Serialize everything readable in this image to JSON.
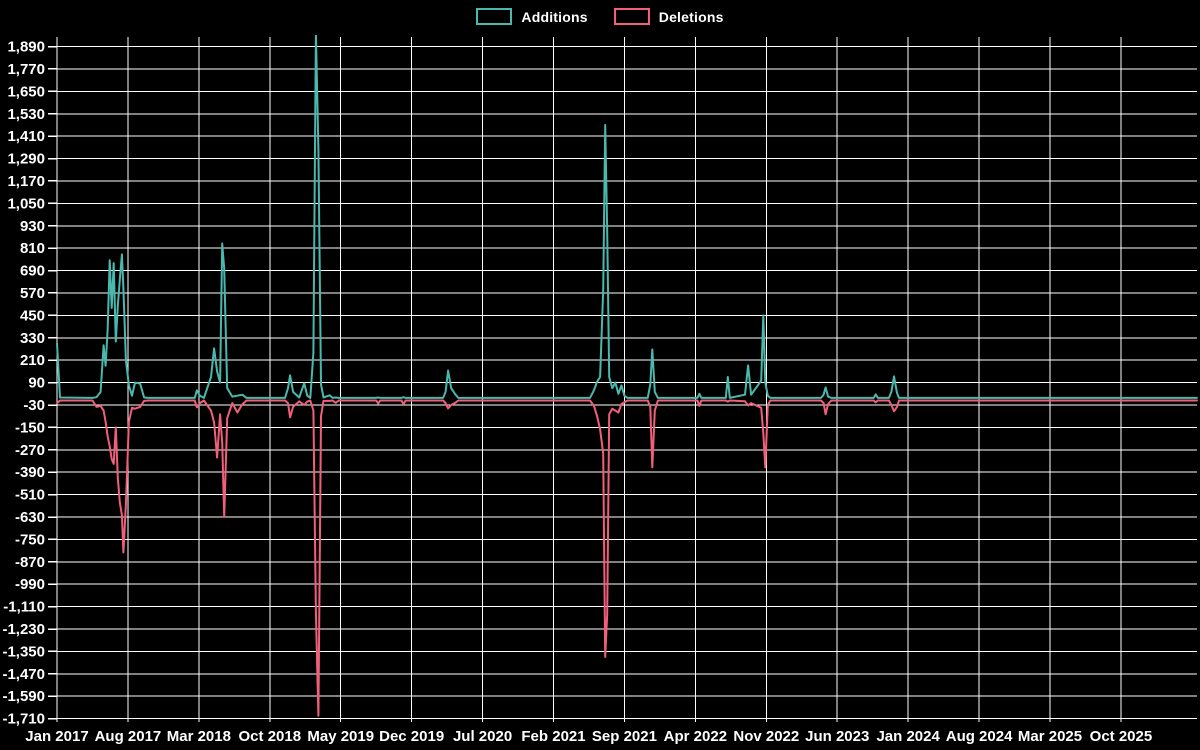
{
  "legend": {
    "items": [
      {
        "id": "additions",
        "label": "Additions",
        "color": "#4bb8ae"
      },
      {
        "id": "deletions",
        "label": "Deletions",
        "color": "#f25f7a"
      }
    ]
  },
  "colors": {
    "background": "#000000",
    "grid": "#ffffff",
    "text": "#ffffff",
    "additions": "#4bb8ae",
    "deletions": "#f25f7a"
  },
  "chart_data": {
    "type": "line",
    "title": "",
    "xlabel": "",
    "ylabel": "",
    "grid": true,
    "legend_position": "top-center",
    "x_unit": "months since Jan 2017",
    "x_range_months": [
      0,
      112.5
    ],
    "y_range": [
      -1710,
      1890
    ],
    "y_tick_step": 120,
    "x_tick_labels": [
      "Jan 2017",
      "Aug 2017",
      "Mar 2018",
      "Oct 2018",
      "May 2019",
      "Dec 2019",
      "Jul 2020",
      "Feb 2021",
      "Sep 2021",
      "Apr 2022",
      "Nov 2022",
      "Jun 2023",
      "Jan 2024",
      "Aug 2024",
      "Mar 2025",
      "Oct 2025"
    ],
    "x_tick_months": [
      0,
      7,
      14,
      21,
      28,
      35,
      42,
      49,
      56,
      63,
      70,
      77,
      84,
      91,
      98,
      105
    ],
    "y_ticks": [
      {
        "value": 1890,
        "label": "1,890"
      },
      {
        "value": 1770,
        "label": "1,770"
      },
      {
        "value": 1650,
        "label": "1,650"
      },
      {
        "value": 1530,
        "label": "1,530"
      },
      {
        "value": 1410,
        "label": "1,410"
      },
      {
        "value": 1290,
        "label": "1,290"
      },
      {
        "value": 1170,
        "label": "1,170"
      },
      {
        "value": 1050,
        "label": "1,050"
      },
      {
        "value": 930,
        "label": "930"
      },
      {
        "value": 810,
        "label": "810"
      },
      {
        "value": 690,
        "label": "690"
      },
      {
        "value": 570,
        "label": "570"
      },
      {
        "value": 450,
        "label": "450"
      },
      {
        "value": 330,
        "label": "330"
      },
      {
        "value": 210,
        "label": "210"
      },
      {
        "value": 90,
        "label": "90"
      },
      {
        "value": -30,
        "label": "-30"
      },
      {
        "value": -150,
        "label": "-150"
      },
      {
        "value": -270,
        "label": "-270"
      },
      {
        "value": -390,
        "label": "-390"
      },
      {
        "value": -510,
        "label": "-510"
      },
      {
        "value": -630,
        "label": "-630"
      },
      {
        "value": -750,
        "label": "-750"
      },
      {
        "value": -870,
        "label": "-870"
      },
      {
        "value": -990,
        "label": "-990"
      },
      {
        "value": -1110,
        "label": "-1,110"
      },
      {
        "value": -1230,
        "label": "-1,230"
      },
      {
        "value": -1350,
        "label": "-1,350"
      },
      {
        "value": -1470,
        "label": "-1,470"
      },
      {
        "value": -1590,
        "label": "-1,590"
      },
      {
        "value": -1710,
        "label": "-1,710"
      }
    ],
    "series": [
      {
        "name": "Additions",
        "color": "#4bb8ae",
        "points": [
          [
            0,
            300
          ],
          [
            0.3,
            10
          ],
          [
            3.5,
            8
          ],
          [
            3.9,
            12
          ],
          [
            4.3,
            40
          ],
          [
            4.6,
            290
          ],
          [
            4.8,
            180
          ],
          [
            5.0,
            380
          ],
          [
            5.2,
            745
          ],
          [
            5.4,
            490
          ],
          [
            5.6,
            730
          ],
          [
            5.8,
            310
          ],
          [
            6.0,
            500
          ],
          [
            6.2,
            640
          ],
          [
            6.4,
            777
          ],
          [
            6.55,
            595
          ],
          [
            6.8,
            210
          ],
          [
            7.1,
            75
          ],
          [
            7.4,
            20
          ],
          [
            7.7,
            90
          ],
          [
            8.2,
            85
          ],
          [
            8.6,
            10
          ],
          [
            9.0,
            8
          ],
          [
            13.6,
            8
          ],
          [
            13.8,
            48
          ],
          [
            14.1,
            20
          ],
          [
            14.5,
            8
          ],
          [
            15.2,
            120
          ],
          [
            15.5,
            273
          ],
          [
            15.8,
            150
          ],
          [
            16.1,
            90
          ],
          [
            16.3,
            835
          ],
          [
            16.5,
            700
          ],
          [
            16.8,
            60
          ],
          [
            17.3,
            15
          ],
          [
            17.8,
            20
          ],
          [
            18.3,
            25
          ],
          [
            18.7,
            8
          ],
          [
            22.5,
            8
          ],
          [
            22.8,
            60
          ],
          [
            23.0,
            129
          ],
          [
            23.3,
            40
          ],
          [
            23.9,
            10
          ],
          [
            24.4,
            86
          ],
          [
            24.7,
            20
          ],
          [
            25.0,
            8
          ],
          [
            25.3,
            250
          ],
          [
            25.55,
            1960
          ],
          [
            25.8,
            1340
          ],
          [
            26.05,
            80
          ],
          [
            26.3,
            10
          ],
          [
            26.9,
            22
          ],
          [
            27.2,
            8
          ],
          [
            27.5,
            10
          ],
          [
            27.8,
            8
          ],
          [
            31.5,
            8
          ],
          [
            31.7,
            10
          ],
          [
            31.9,
            8
          ],
          [
            34.0,
            8
          ],
          [
            34.2,
            12
          ],
          [
            34.4,
            8
          ],
          [
            38.1,
            8
          ],
          [
            38.35,
            40
          ],
          [
            38.6,
            155
          ],
          [
            38.9,
            60
          ],
          [
            39.3,
            28
          ],
          [
            39.6,
            8
          ],
          [
            52.6,
            8
          ],
          [
            53.0,
            50
          ],
          [
            53.3,
            95
          ],
          [
            53.6,
            120
          ],
          [
            53.9,
            585
          ],
          [
            54.1,
            1470
          ],
          [
            54.3,
            900
          ],
          [
            54.5,
            120
          ],
          [
            54.8,
            60
          ],
          [
            55.1,
            90
          ],
          [
            55.4,
            30
          ],
          [
            55.7,
            75
          ],
          [
            56.0,
            20
          ],
          [
            56.3,
            8
          ],
          [
            58.3,
            8
          ],
          [
            58.55,
            80
          ],
          [
            58.75,
            268
          ],
          [
            59.0,
            40
          ],
          [
            59.3,
            8
          ],
          [
            63.2,
            8
          ],
          [
            63.4,
            30
          ],
          [
            63.6,
            8
          ],
          [
            66.0,
            8
          ],
          [
            66.2,
            120
          ],
          [
            66.4,
            8
          ],
          [
            67.9,
            25
          ],
          [
            68.2,
            182
          ],
          [
            68.5,
            25
          ],
          [
            69.5,
            100
          ],
          [
            69.7,
            450
          ],
          [
            69.9,
            90
          ],
          [
            70.15,
            20
          ],
          [
            70.4,
            8
          ],
          [
            75.4,
            8
          ],
          [
            75.65,
            25
          ],
          [
            75.85,
            64
          ],
          [
            76.1,
            15
          ],
          [
            76.4,
            8
          ],
          [
            80.6,
            8
          ],
          [
            80.8,
            27
          ],
          [
            81.0,
            8
          ],
          [
            82.1,
            8
          ],
          [
            82.35,
            40
          ],
          [
            82.6,
            123
          ],
          [
            82.9,
            35
          ],
          [
            83.1,
            8
          ],
          [
            112.5,
            8
          ]
        ]
      },
      {
        "name": "Deletions",
        "color": "#f25f7a",
        "points": [
          [
            0,
            -20
          ],
          [
            0.3,
            -6
          ],
          [
            3.5,
            -6
          ],
          [
            3.9,
            -40
          ],
          [
            4.3,
            -35
          ],
          [
            4.6,
            -60
          ],
          [
            4.8,
            -120
          ],
          [
            5.0,
            -200
          ],
          [
            5.2,
            -250
          ],
          [
            5.4,
            -320
          ],
          [
            5.6,
            -345
          ],
          [
            5.8,
            -150
          ],
          [
            6.0,
            -420
          ],
          [
            6.2,
            -550
          ],
          [
            6.4,
            -620
          ],
          [
            6.55,
            -820
          ],
          [
            6.8,
            -560
          ],
          [
            7.1,
            -120
          ],
          [
            7.4,
            -45
          ],
          [
            7.7,
            -50
          ],
          [
            8.2,
            -40
          ],
          [
            8.6,
            -8
          ],
          [
            9.0,
            -6
          ],
          [
            13.6,
            -6
          ],
          [
            13.8,
            -43
          ],
          [
            14.1,
            -20
          ],
          [
            14.5,
            -6
          ],
          [
            15.2,
            -60
          ],
          [
            15.5,
            -123
          ],
          [
            15.8,
            -311
          ],
          [
            16.1,
            -80
          ],
          [
            16.3,
            -230
          ],
          [
            16.5,
            -630
          ],
          [
            16.8,
            -100
          ],
          [
            17.3,
            -20
          ],
          [
            17.8,
            -70
          ],
          [
            18.3,
            -25
          ],
          [
            18.7,
            -6
          ],
          [
            22.5,
            -6
          ],
          [
            22.8,
            -20
          ],
          [
            23.0,
            -96
          ],
          [
            23.3,
            -40
          ],
          [
            23.9,
            -10
          ],
          [
            24.4,
            -30
          ],
          [
            24.7,
            -12
          ],
          [
            25.0,
            -6
          ],
          [
            25.3,
            -60
          ],
          [
            25.55,
            -1140
          ],
          [
            25.8,
            -1695
          ],
          [
            26.05,
            -90
          ],
          [
            26.3,
            -8
          ],
          [
            26.9,
            -8
          ],
          [
            27.2,
            -6
          ],
          [
            27.5,
            -18
          ],
          [
            27.8,
            -6
          ],
          [
            31.5,
            -6
          ],
          [
            31.7,
            -22
          ],
          [
            31.9,
            -6
          ],
          [
            34.0,
            -6
          ],
          [
            34.2,
            -25
          ],
          [
            34.4,
            -6
          ],
          [
            38.1,
            -6
          ],
          [
            38.35,
            -20
          ],
          [
            38.6,
            -48
          ],
          [
            38.9,
            -30
          ],
          [
            39.3,
            -18
          ],
          [
            39.6,
            -6
          ],
          [
            52.6,
            -6
          ],
          [
            53.0,
            -35
          ],
          [
            53.3,
            -90
          ],
          [
            53.6,
            -160
          ],
          [
            53.9,
            -290
          ],
          [
            54.1,
            -1380
          ],
          [
            54.3,
            -1150
          ],
          [
            54.5,
            -80
          ],
          [
            54.8,
            -50
          ],
          [
            55.1,
            -60
          ],
          [
            55.4,
            -70
          ],
          [
            55.7,
            -25
          ],
          [
            56.0,
            -15
          ],
          [
            56.3,
            -6
          ],
          [
            58.3,
            -6
          ],
          [
            58.55,
            -40
          ],
          [
            58.75,
            -364
          ],
          [
            59.0,
            -60
          ],
          [
            59.3,
            -6
          ],
          [
            63.2,
            -6
          ],
          [
            63.4,
            -35
          ],
          [
            63.6,
            -6
          ],
          [
            66.0,
            -6
          ],
          [
            66.2,
            -12
          ],
          [
            66.4,
            -6
          ],
          [
            67.9,
            -10
          ],
          [
            68.2,
            -32
          ],
          [
            68.5,
            -20
          ],
          [
            69.5,
            -45
          ],
          [
            69.7,
            -180
          ],
          [
            69.9,
            -364
          ],
          [
            70.15,
            -30
          ],
          [
            70.4,
            -6
          ],
          [
            75.4,
            -6
          ],
          [
            75.65,
            -20
          ],
          [
            75.85,
            -80
          ],
          [
            76.1,
            -25
          ],
          [
            76.4,
            -6
          ],
          [
            80.6,
            -6
          ],
          [
            80.8,
            -16
          ],
          [
            81.0,
            -6
          ],
          [
            82.1,
            -6
          ],
          [
            82.35,
            -30
          ],
          [
            82.6,
            -64
          ],
          [
            82.9,
            -40
          ],
          [
            83.1,
            -6
          ],
          [
            112.5,
            -6
          ]
        ]
      }
    ]
  }
}
